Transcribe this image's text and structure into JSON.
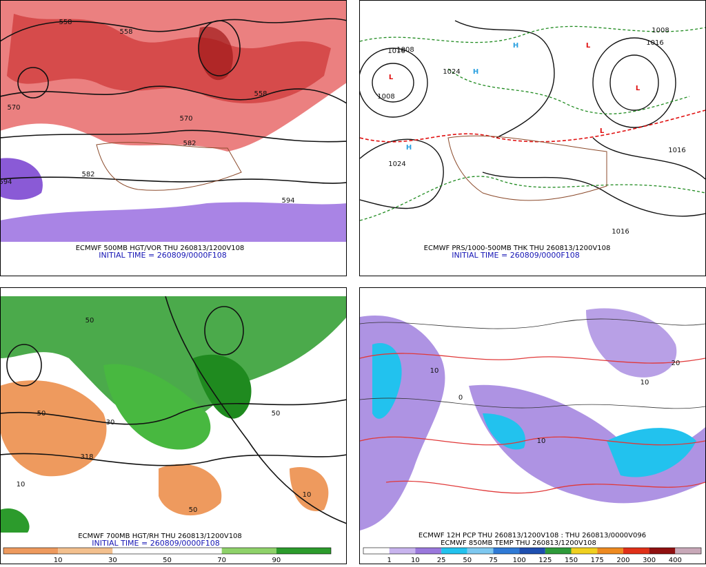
{
  "panels": [
    {
      "caption": "ECMWF 500MB HGT/VOR THU 260813/1200V108",
      "initial_time": "INITIAL TIME = 260809/0000F108",
      "labels": [
        "558",
        "558",
        "570",
        "582",
        "582",
        "594",
        "594",
        "558",
        "570"
      ]
    },
    {
      "caption": "ECMWF PRS/1000-500MB THK THU 260813/1200V108",
      "initial_time": "INITIAL TIME = 260809/0000F108",
      "labels": [
        "1008",
        "1016",
        "1024",
        "1024",
        "1008",
        "1016",
        "1008",
        "1016",
        "1016",
        "L",
        "L",
        "L",
        "L",
        "H",
        "H",
        "H"
      ]
    },
    {
      "caption": "ECMWF 700MB HGT/RH THU 260813/1200V108",
      "initial_time": "INITIAL TIME = 260809/0000F108",
      "labels": [
        "50",
        "50",
        "10",
        "318",
        "50",
        "10",
        "50",
        "30"
      ]
    },
    {
      "caption": "ECMWF 12H PCP THU 260813/1200V108 : THU 260813/0000V096",
      "initial_time": "ECMWF 850MB TEMP THU 260813/1200V108",
      "labels": [
        "10",
        "0",
        "10",
        "20",
        "10"
      ]
    }
  ],
  "colorbars": [
    {
      "labels": [
        10,
        30,
        50,
        70,
        90
      ],
      "colors": [
        "#ee9a5e",
        "#f3c08e",
        "#ffffff",
        "#ffffff",
        "#8fd26a",
        "#2c9b2c"
      ]
    },
    {
      "labels": [
        1,
        10,
        25,
        50,
        75,
        100,
        125,
        150,
        175,
        200,
        300,
        400
      ],
      "colors": [
        "#ffffff",
        "#c8b4ee",
        "#9a78dc",
        "#22c2ee",
        "#7ec8f0",
        "#2f7ad6",
        "#1e4fb0",
        "#2e9a3a",
        "#f0d020",
        "#ee8a20",
        "#e03018",
        "#901010",
        "#c8a8b8"
      ]
    }
  ]
}
